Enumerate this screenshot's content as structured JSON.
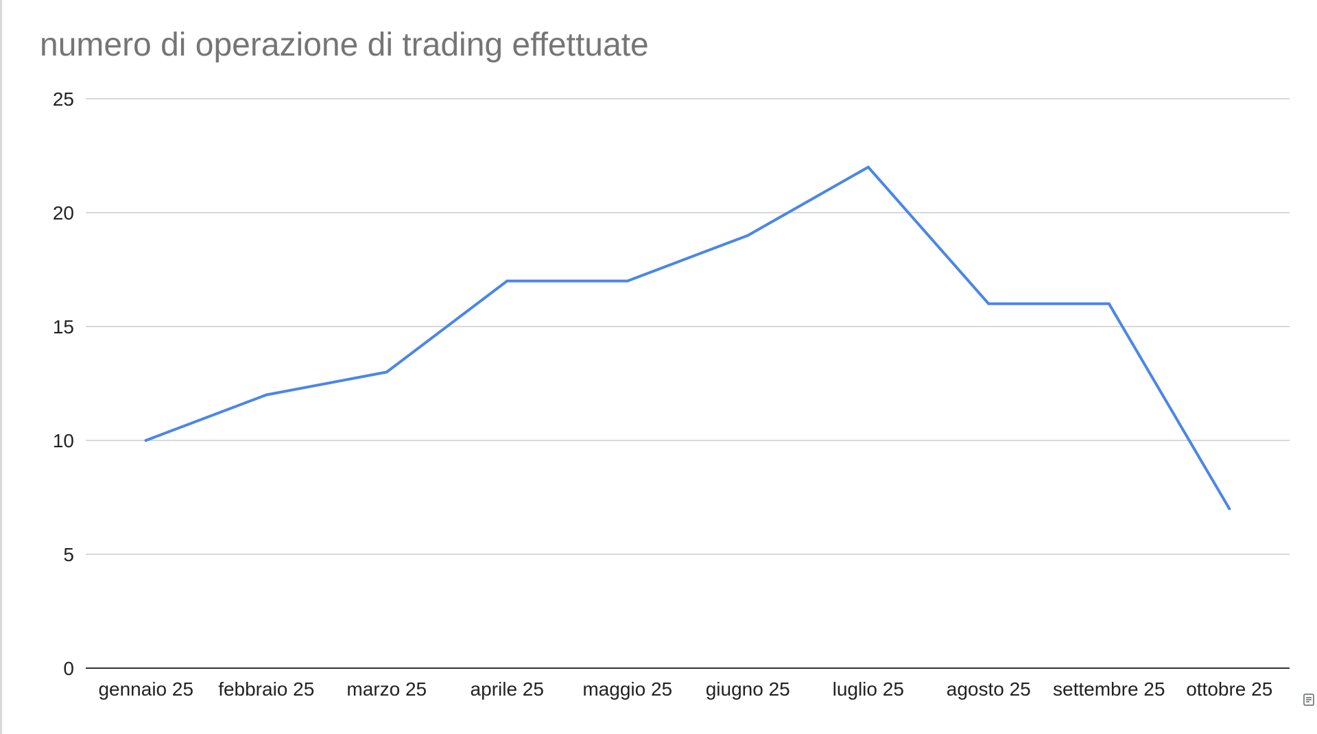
{
  "chart_data": {
    "type": "line",
    "title": "numero di operazione di trading effettuate",
    "xlabel": "",
    "ylabel": "",
    "categories": [
      "gennaio 25",
      "febbraio 25",
      "marzo 25",
      "aprile 25",
      "maggio 25",
      "giugno 25",
      "luglio 25",
      "agosto 25",
      "settembre 25",
      "ottobre 25"
    ],
    "series": [
      {
        "values": [
          10,
          12,
          13,
          17,
          17,
          19,
          22,
          16,
          16,
          7
        ],
        "color": "#4a86e8"
      }
    ],
    "ylim": [
      0,
      25
    ],
    "yticks": [
      "0",
      "5",
      "10",
      "15",
      "20",
      "25"
    ],
    "grid": true,
    "legend": "none"
  },
  "icons": {
    "corner": "legend-toggle-icon"
  }
}
